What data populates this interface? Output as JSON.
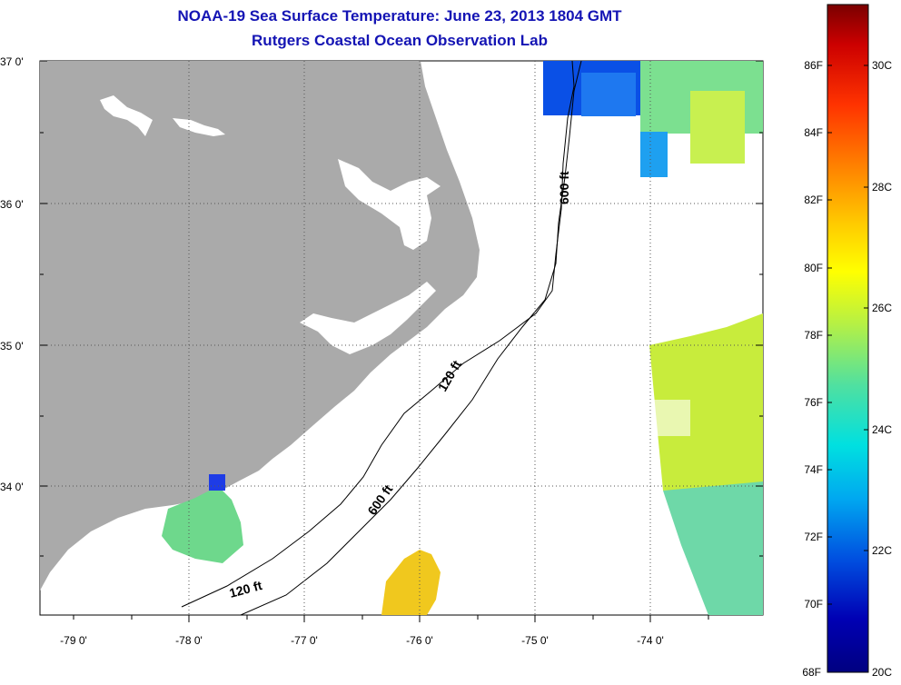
{
  "header": {
    "title": "NOAA-19 Sea Surface Temperature:  June 23, 2013 1804 GMT",
    "subtitle": "Rutgers Coastal Ocean Observation Lab"
  },
  "map": {
    "lat_labels": [
      "37 0'",
      "36 0'",
      "35 0'",
      "34 0'"
    ],
    "lon_labels": [
      "-79 0'",
      "-78 0'",
      "-77 0'",
      "-76 0'",
      "-75 0'",
      "-74 0'"
    ],
    "contour_labels": [
      "600 ft",
      "120 ft",
      "600 ft",
      "120 ft"
    ],
    "colors": {
      "land": "#aaaaaa",
      "ocean": "#ffffff",
      "gridline": "#555555"
    }
  },
  "colorbar": {
    "fahrenheit_labels": [
      "86F",
      "84F",
      "82F",
      "80F",
      "78F",
      "76F",
      "74F",
      "72F",
      "70F",
      "68F"
    ],
    "celsius_labels": [
      "30C",
      "28C",
      "26C",
      "24C",
      "22C",
      "20C"
    ],
    "scale_colors": [
      "#7a0000",
      "#cc0000",
      "#ff3300",
      "#ff8800",
      "#ffcc00",
      "#ffff00",
      "#b4f046",
      "#50e0a0",
      "#00e0e0",
      "#00a8f0",
      "#0050e0",
      "#0000b4",
      "#000080"
    ]
  }
}
